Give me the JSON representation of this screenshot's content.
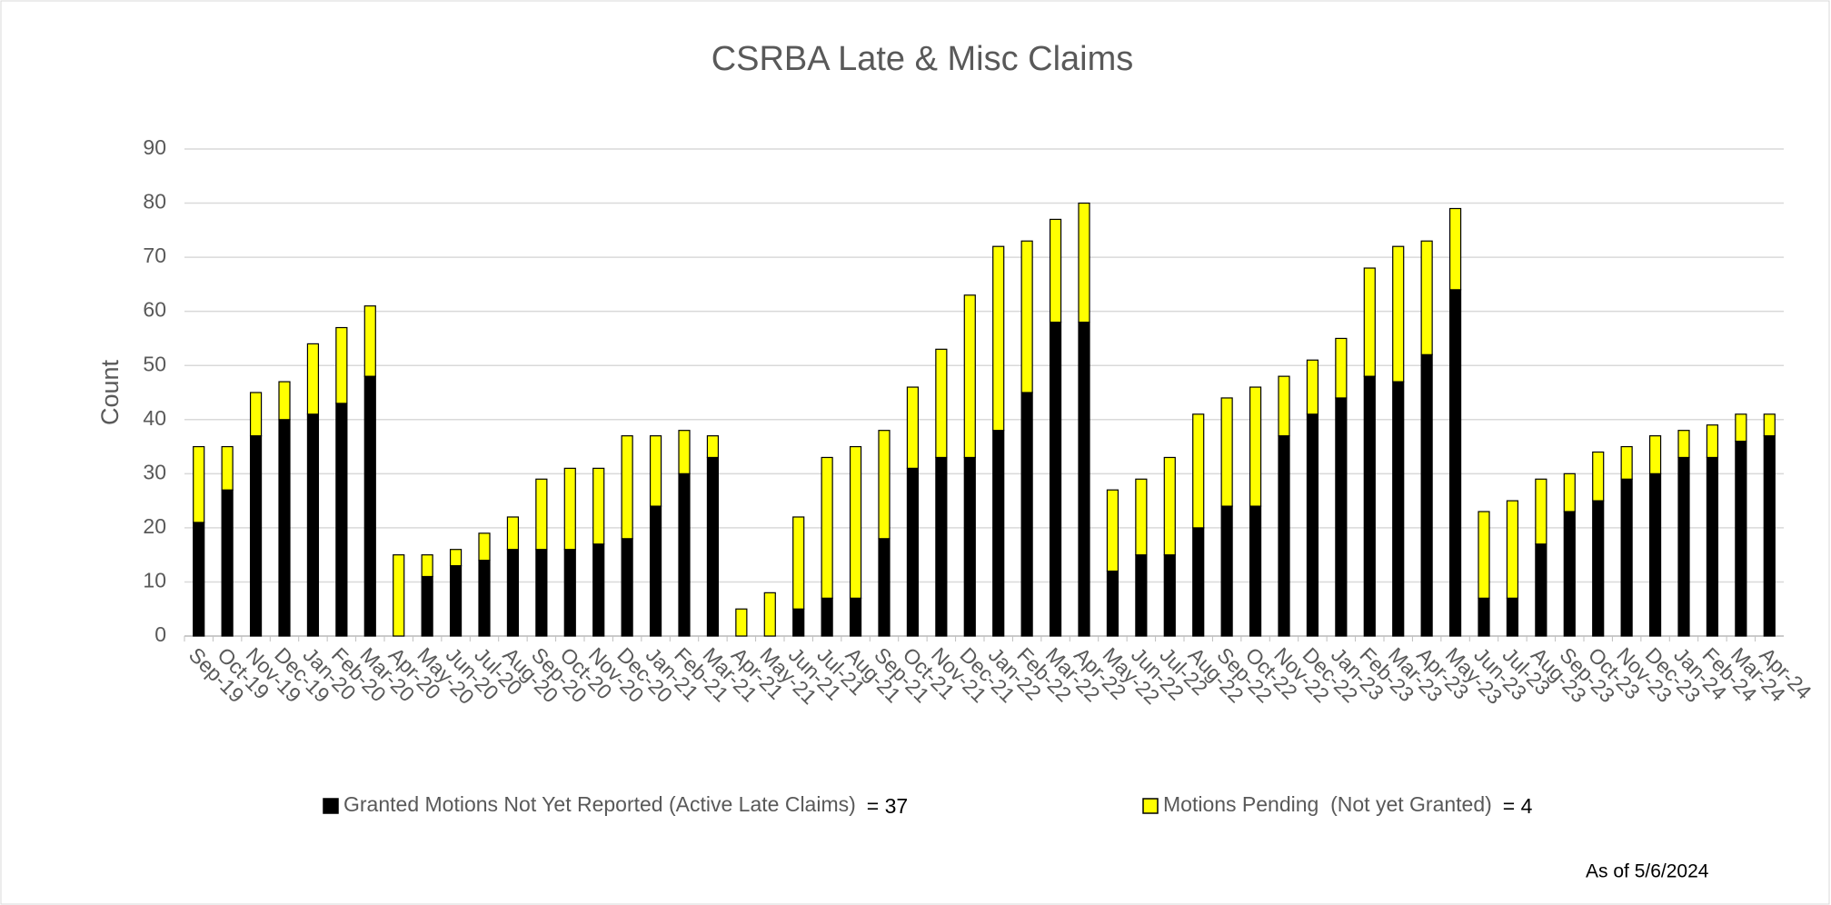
{
  "chart_data": {
    "type": "stacked_bar",
    "title": "CSRBA Late & Misc Claims",
    "y_label": "Count",
    "categories": [
      "Sep-19",
      "Oct-19",
      "Nov-19",
      "Dec-19",
      "Jan-20",
      "Feb-20",
      "Mar-20",
      "Apr-20",
      "May-20",
      "Jun-20",
      "Jul-20",
      "Aug-20",
      "Sep-20",
      "Oct-20",
      "Nov-20",
      "Dec-20",
      "Jan-21",
      "Feb-21",
      "Mar-21",
      "Apr-21",
      "May-21",
      "Jun-21",
      "Jul-21",
      "Aug-21",
      "Sep-21",
      "Oct-21",
      "Nov-21",
      "Dec-21",
      "Jan-22",
      "Feb-22",
      "Mar-22",
      "Apr-22",
      "May-22",
      "Jun-22",
      "Jul-22",
      "Aug-22",
      "Sep-22",
      "Oct-22",
      "Nov-22",
      "Dec-22",
      "Jan-23",
      "Feb-23",
      "Mar-23",
      "Apr-23",
      "May-23",
      "Jun-23",
      "Jul-23",
      "Aug-23",
      "Sep-23",
      "Oct-23",
      "Nov-23",
      "Dec-23",
      "Jan-24",
      "Feb-24",
      "Mar-24",
      "Apr-24"
    ],
    "series": [
      {
        "name": "Granted Motions Not Yet Reported (Active Late Claims)",
        "color": "#000000",
        "values": [
          21,
          27,
          37,
          40,
          41,
          43,
          48,
          0,
          11,
          13,
          14,
          16,
          16,
          16,
          17,
          18,
          24,
          30,
          33,
          0,
          0,
          5,
          7,
          7,
          18,
          31,
          33,
          33,
          38,
          45,
          58,
          58,
          12,
          15,
          15,
          20,
          24,
          24,
          37,
          41,
          44,
          48,
          47,
          52,
          64,
          7,
          7,
          17,
          23,
          25,
          29,
          30,
          33,
          33,
          36,
          37
        ]
      },
      {
        "name": "Motions Pending  (Not yet Granted)",
        "color": "#ffff00",
        "values": [
          14,
          8,
          8,
          7,
          13,
          14,
          13,
          15,
          4,
          3,
          5,
          6,
          13,
          15,
          14,
          19,
          13,
          8,
          4,
          5,
          8,
          17,
          26,
          28,
          20,
          15,
          20,
          30,
          34,
          28,
          19,
          22,
          15,
          14,
          18,
          21,
          20,
          22,
          11,
          10,
          11,
          20,
          25,
          21,
          15,
          16,
          18,
          12,
          7,
          9,
          6,
          7,
          5,
          6,
          5,
          4
        ]
      }
    ],
    "legend_notes": [
      "= 37",
      "= 4"
    ],
    "footnote": "As of 5/6/2024",
    "ylim": [
      0,
      90
    ],
    "yticks": [
      0,
      10,
      20,
      30,
      40,
      50,
      60,
      70,
      80,
      90
    ],
    "grid": true
  }
}
